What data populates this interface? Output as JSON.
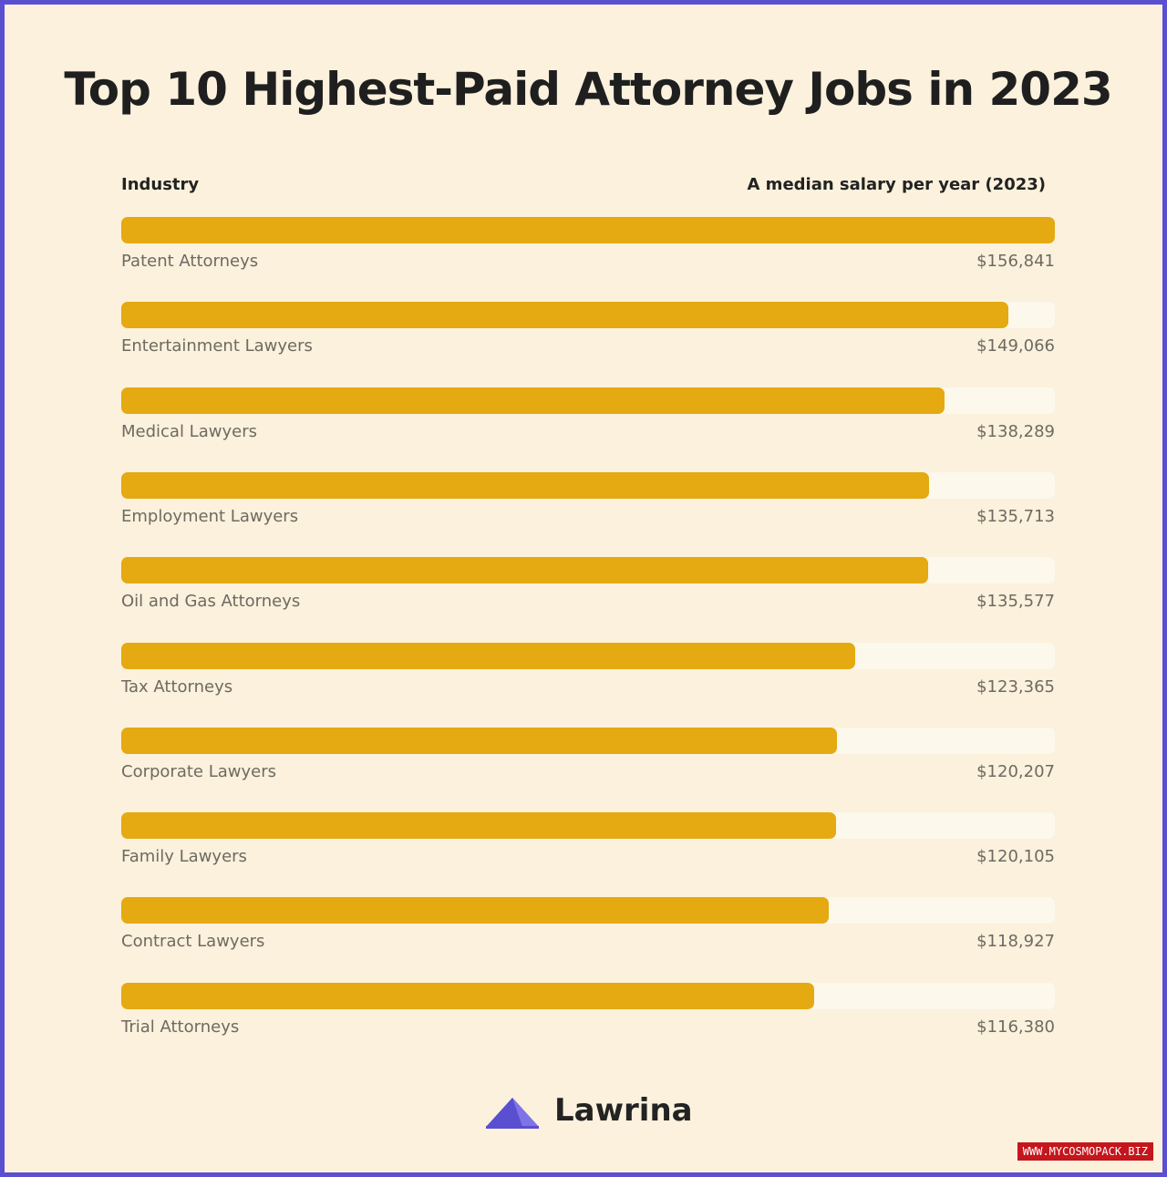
{
  "chart_data": {
    "type": "bar",
    "title": "Top 10 Highest-Paid Attorney Jobs in 2023",
    "category_header": "Industry",
    "value_header": "A median salary per year (2023)",
    "categories": [
      "Patent Attorneys",
      "Entertainment Lawyers",
      "Medical Lawyers",
      "Employment Lawyers",
      "Oil and Gas Attorneys",
      "Tax Attorneys",
      "Corporate Lawyers",
      "Family Lawyers",
      "Contract Lawyers",
      "Trial Attorneys"
    ],
    "values": [
      156841,
      149066,
      138289,
      135713,
      135577,
      123365,
      120207,
      120105,
      118927,
      116380
    ],
    "value_labels": [
      "$156,841",
      "$149,066",
      "$138,289",
      "$135,713",
      "$135,577",
      "$123,365",
      "$120,207",
      "$120,105",
      "$118,927",
      "$116,380"
    ],
    "xlim": [
      0,
      156841
    ],
    "bar_color": "#e5a911",
    "track_color": "#fdf8ec",
    "orientation": "horizontal"
  },
  "brand": {
    "name": "Lawrina",
    "logo_icon": "mountain-triangle-icon",
    "logo_color": "#5a4ed1"
  },
  "watermark": "WWW.MYCOSMOPACK.BIZ",
  "colors": {
    "background": "#fbf1dc",
    "border": "#5a4ed1"
  }
}
